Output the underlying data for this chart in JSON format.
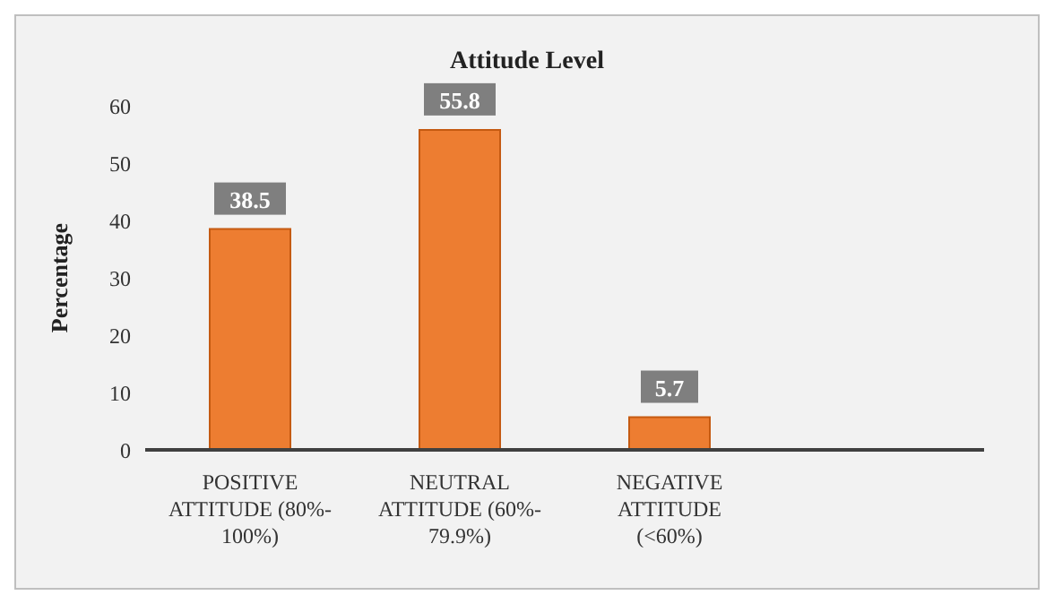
{
  "chart_data": {
    "type": "bar",
    "title": "Attitude Level",
    "ylabel": "Percentage",
    "categories": [
      "POSITIVE ATTITUDE (80%-100%)",
      "NEUTRAL ATTITUDE (60%-79.9%)",
      "NEGATIVE ATTITUDE (<60%)",
      null
    ],
    "values": [
      38.5,
      55.8,
      5.7,
      null
    ],
    "color": "#ed7d31",
    "ylim": [
      0,
      60
    ],
    "yticks": [
      0,
      10,
      20,
      30,
      40,
      50,
      60
    ],
    "grid": false,
    "legend": false,
    "data_labels": true
  }
}
